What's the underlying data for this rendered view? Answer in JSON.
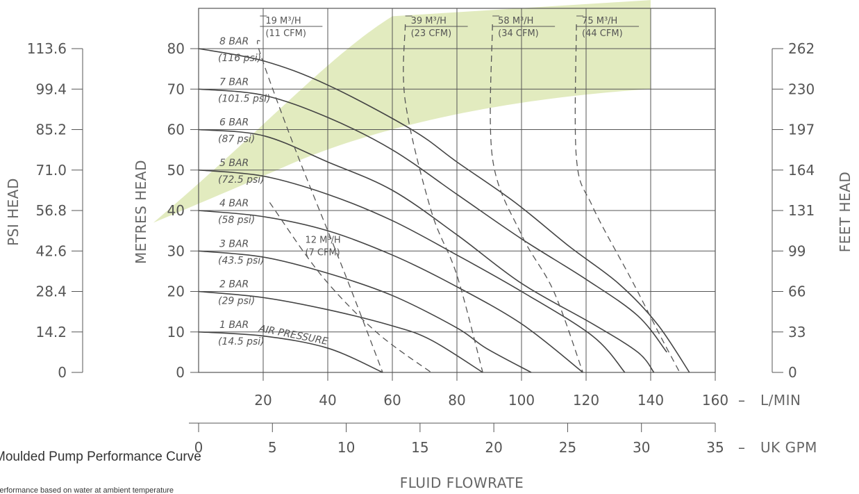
{
  "chart_data": {
    "type": "line",
    "title": "Moulded Pump Performance Curve",
    "subtitle": "Performance based on water at ambient temperature",
    "x_primary": {
      "label": "L/MIN",
      "ticks": [
        20,
        40,
        60,
        80,
        100,
        120,
        140,
        160
      ],
      "range": [
        0,
        160
      ]
    },
    "x_secondary": {
      "label": "UK GPM",
      "ticks": [
        0,
        5,
        10,
        15,
        20,
        25,
        30,
        35
      ],
      "range": [
        0,
        35
      ]
    },
    "xlabel": "FLUID FLOWRATE",
    "y_left_outer": {
      "label": "PSI HEAD",
      "ticks": [
        "113.6",
        "99.4",
        "85.2",
        "71.0",
        "56.8",
        "42.6",
        "28.4",
        "14.2",
        "0"
      ]
    },
    "y_left_inner": {
      "label": "METRES HEAD",
      "ticks": [
        80,
        70,
        60,
        50,
        40,
        30,
        20,
        10,
        0
      ],
      "range": [
        0,
        80
      ]
    },
    "y_right": {
      "label": "FEET HEAD",
      "ticks": [
        262,
        230,
        197,
        164,
        131,
        99,
        66,
        33,
        0
      ]
    },
    "grid": true,
    "series": [
      {
        "name": "1 BAR",
        "sub": "(14.5 psi)",
        "extra": "AIR PRESSURE",
        "points": [
          [
            0,
            10
          ],
          [
            20,
            9
          ],
          [
            40,
            6
          ],
          [
            57,
            0
          ]
        ]
      },
      {
        "name": "2 BAR",
        "sub": "(29 psi)",
        "points": [
          [
            0,
            20
          ],
          [
            20,
            18.5
          ],
          [
            40,
            15.5
          ],
          [
            60,
            11.5
          ],
          [
            72,
            8
          ],
          [
            88,
            0
          ]
        ]
      },
      {
        "name": "3 BAR",
        "sub": "(43.5 psi)",
        "points": [
          [
            0,
            30
          ],
          [
            20,
            28.5
          ],
          [
            40,
            24.5
          ],
          [
            60,
            19
          ],
          [
            80,
            11
          ],
          [
            89,
            6
          ],
          [
            103,
            0
          ]
        ]
      },
      {
        "name": "4 BAR",
        "sub": "(58 psi)",
        "points": [
          [
            0,
            40
          ],
          [
            20,
            38.5
          ],
          [
            40,
            35
          ],
          [
            60,
            29
          ],
          [
            78,
            22
          ],
          [
            100,
            12
          ],
          [
            119,
            0
          ]
        ]
      },
      {
        "name": "5 BAR",
        "sub": "(72.5 psi)",
        "points": [
          [
            0,
            50
          ],
          [
            20,
            48.5
          ],
          [
            40,
            44
          ],
          [
            60,
            37.5
          ],
          [
            80,
            29
          ],
          [
            100,
            20
          ],
          [
            122,
            9
          ],
          [
            132,
            0
          ]
        ]
      },
      {
        "name": "6 BAR",
        "sub": "(87 psi)",
        "points": [
          [
            0,
            60
          ],
          [
            20,
            58.5
          ],
          [
            40,
            52
          ],
          [
            60,
            45
          ],
          [
            80,
            34
          ],
          [
            100,
            22
          ],
          [
            122,
            12
          ],
          [
            136,
            5
          ],
          [
            141,
            0
          ]
        ]
      },
      {
        "name": "7 BAR",
        "sub": "(101.5 psi)",
        "points": [
          [
            0,
            70
          ],
          [
            20,
            68.5
          ],
          [
            40,
            63
          ],
          [
            60,
            55
          ],
          [
            80,
            44
          ],
          [
            100,
            33
          ],
          [
            120,
            23
          ],
          [
            136,
            14
          ],
          [
            145,
            5
          ]
        ]
      },
      {
        "name": "8 BAR",
        "sub": "(116 psi)",
        "points": [
          [
            0,
            80
          ],
          [
            20,
            77
          ],
          [
            40,
            71
          ],
          [
            66,
            60
          ],
          [
            80,
            52
          ],
          [
            98,
            42
          ],
          [
            115,
            31
          ],
          [
            130,
            22
          ],
          [
            142,
            12
          ],
          [
            152,
            0
          ]
        ]
      }
    ],
    "air_consumption": [
      {
        "label": "19 M³/H",
        "sub": "(11 CFM)",
        "points": [
          [
            19,
            82
          ],
          [
            19,
            79
          ],
          [
            30,
            55
          ],
          [
            45,
            25
          ],
          [
            57,
            0
          ]
        ]
      },
      {
        "label": "12 M³/H",
        "sub": "(7 CFM)",
        "points": [
          [
            22,
            42
          ],
          [
            38,
            24
          ],
          [
            55,
            10
          ],
          [
            72,
            0
          ]
        ]
      },
      {
        "label": "39 M³/H",
        "sub": "(23 CFM)",
        "points": [
          [
            64,
            86
          ],
          [
            64,
            67
          ],
          [
            72,
            40
          ],
          [
            80,
            24
          ],
          [
            88,
            0
          ]
        ]
      },
      {
        "label": "58 M³/H",
        "sub": "(34 CFM)",
        "points": [
          [
            91,
            86
          ],
          [
            91,
            53
          ],
          [
            100,
            34
          ],
          [
            110,
            20
          ],
          [
            119,
            0
          ]
        ]
      },
      {
        "label": "75 M³/H",
        "sub": "(44 CFM)",
        "points": [
          [
            117,
            86
          ],
          [
            117,
            53
          ],
          [
            122,
            41
          ],
          [
            134,
            23
          ],
          [
            143,
            9
          ],
          [
            149,
            0
          ]
        ]
      }
    ],
    "colors": {
      "curve": "#444444",
      "grid": "#555555",
      "dash": "#555555",
      "shade": "#dde8b4",
      "text": "#555555"
    }
  }
}
